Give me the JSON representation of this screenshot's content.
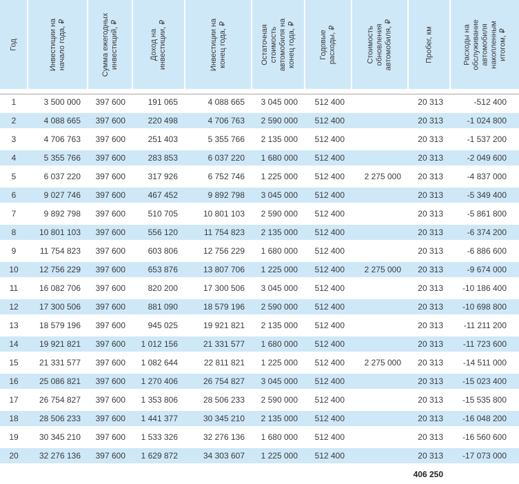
{
  "chart_data": {
    "type": "table",
    "title": "",
    "columns": [
      "Год",
      "Инвестиции на\nначало года, ₽",
      "Сумма ежегодных\nинвестиций, ₽",
      "Доход на\nинвестиции, ₽",
      "Инвестиции на\nконец года, ₽",
      "Остаточная\nстоимость\nавтомобиля на\nконец года, ₽",
      "Годовые\nрасходы, ₽",
      "Стоимость\nобновления\nавтомобиля, ₽",
      "Пробег, км",
      "Расходы на\nобслуживание\nавтомобиля\nнакопленным\nитогом, ₽"
    ],
    "rows": [
      [
        "1",
        "3 500 000",
        "397 600",
        "191 065",
        "4 088 665",
        "3 045 000",
        "512 400",
        "",
        "20 313",
        "-512 400"
      ],
      [
        "2",
        "4 088 665",
        "397 600",
        "220 498",
        "4 706 763",
        "2 590 000",
        "512 400",
        "",
        "20 313",
        "-1 024 800"
      ],
      [
        "3",
        "4 706 763",
        "397 600",
        "251 403",
        "5 355 766",
        "2 135 000",
        "512 400",
        "",
        "20 313",
        "-1 537 200"
      ],
      [
        "4",
        "5 355 766",
        "397 600",
        "283 853",
        "6 037 220",
        "1 680 000",
        "512 400",
        "",
        "20 313",
        "-2 049 600"
      ],
      [
        "5",
        "6 037 220",
        "397 600",
        "317 926",
        "6 752 746",
        "1 225 000",
        "512 400",
        "2 275 000",
        "20 313",
        "-4 837 000"
      ],
      [
        "6",
        "9 027 746",
        "397 600",
        "467 452",
        "9 892 798",
        "3 045 000",
        "512 400",
        "",
        "20 313",
        "-5 349 400"
      ],
      [
        "7",
        "9 892 798",
        "397 600",
        "510 705",
        "10 801 103",
        "2 590 000",
        "512 400",
        "",
        "20 313",
        "-5 861 800"
      ],
      [
        "8",
        "10 801 103",
        "397 600",
        "556 120",
        "11 754 823",
        "2 135 000",
        "512 400",
        "",
        "20 313",
        "-6 374 200"
      ],
      [
        "9",
        "11 754 823",
        "397 600",
        "603 806",
        "12 756 229",
        "1 680 000",
        "512 400",
        "",
        "20 313",
        "-6 886 600"
      ],
      [
        "10",
        "12 756 229",
        "397 600",
        "653 876",
        "13 807 706",
        "1 225 000",
        "512 400",
        "2 275 000",
        "20 313",
        "-9 674 000"
      ],
      [
        "11",
        "16 082 706",
        "397 600",
        "820 200",
        "17 300 506",
        "3 045 000",
        "512 400",
        "",
        "20 313",
        "-10 186 400"
      ],
      [
        "12",
        "17 300 506",
        "397 600",
        "881 090",
        "18 579 196",
        "2 590 000",
        "512 400",
        "",
        "20 313",
        "-10 698 800"
      ],
      [
        "13",
        "18 579 196",
        "397 600",
        "945 025",
        "19 921 821",
        "2 135 000",
        "512 400",
        "",
        "20 313",
        "-11 211 200"
      ],
      [
        "14",
        "19 921 821",
        "397 600",
        "1 012 156",
        "21 331 577",
        "1 680 000",
        "512 400",
        "",
        "20 313",
        "-11 723 600"
      ],
      [
        "15",
        "21 331 577",
        "397 600",
        "1 082 644",
        "22 811 821",
        "1 225 000",
        "512 400",
        "2 275 000",
        "20 313",
        "-14 511 000"
      ],
      [
        "16",
        "25 086 821",
        "397 600",
        "1 270 406",
        "26 754 827",
        "3 045 000",
        "512 400",
        "",
        "20 313",
        "-15 023 400"
      ],
      [
        "17",
        "26 754 827",
        "397 600",
        "1 353 806",
        "28 506 233",
        "2 590 000",
        "512 400",
        "",
        "20 313",
        "-15 535 800"
      ],
      [
        "18",
        "28 506 233",
        "397 600",
        "1 441 377",
        "30 345 210",
        "2 135 000",
        "512 400",
        "",
        "20 313",
        "-16 048 200"
      ],
      [
        "19",
        "30 345 210",
        "397 600",
        "1 533 326",
        "32 276 136",
        "1 680 000",
        "512 400",
        "",
        "20 313",
        "-16 560 600"
      ],
      [
        "20",
        "32 276 136",
        "397 600",
        "1 629 872",
        "34 303 607",
        "1 225 000",
        "512 400",
        "",
        "20 313",
        "-17 073 000"
      ]
    ],
    "footer": {
      "mileage_total": "406 250"
    },
    "layout": {
      "stripe_pattern": "even rows blue, odd rows white",
      "header_rotation_deg": -90
    }
  },
  "colors": {
    "stripe_blue": "#cfe8f8",
    "header_blue": "#cfe8f8",
    "rule_gray": "#a8a8a8",
    "text": "#3a3a3a"
  }
}
